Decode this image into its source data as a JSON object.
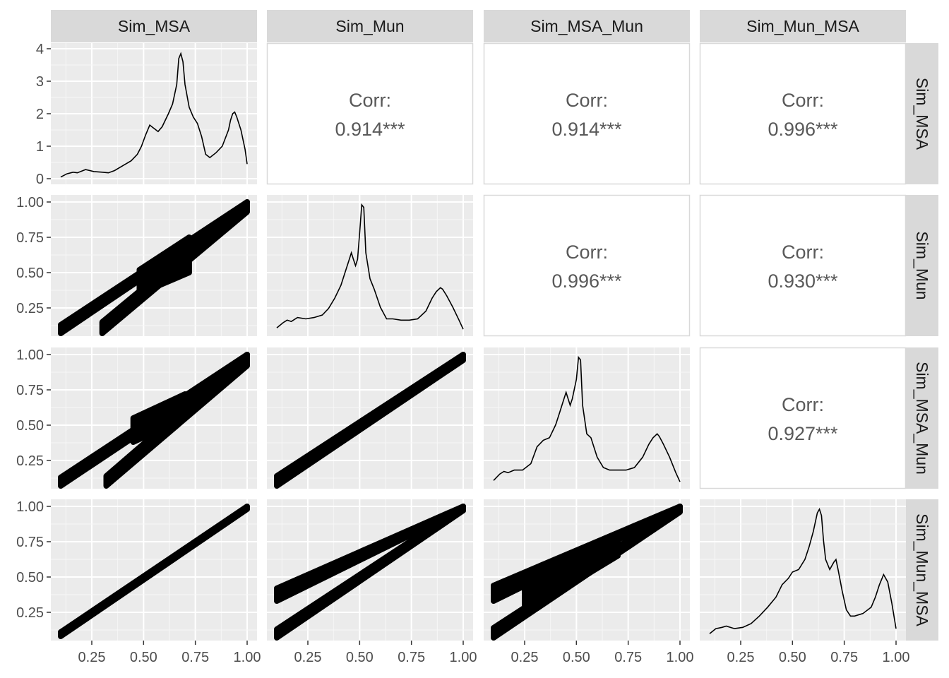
{
  "variables": [
    "Sim_MSA",
    "Sim_Mun",
    "Sim_MSA_Mun",
    "Sim_Mun_MSA"
  ],
  "chart_data": {
    "type": "scatter-matrix",
    "xlim": [
      0.1,
      1.0
    ],
    "ylim": [
      0.1,
      1.0
    ],
    "x_ticks": [
      "0.25",
      "0.50",
      "0.75",
      "1.00"
    ],
    "x_tick_values": [
      0.25,
      0.5,
      0.75,
      1.0
    ],
    "y_ticks": [
      "0.25",
      "0.50",
      "0.75",
      "1.00"
    ],
    "y_tick_values": [
      0.25,
      0.5,
      0.75,
      1.0
    ],
    "density_ticks": [
      "0",
      "1",
      "2",
      "3",
      "4"
    ],
    "density_tick_values": [
      0,
      1,
      2,
      3,
      4
    ],
    "density_ylim": [
      0,
      4
    ],
    "corr_label": "Corr:",
    "correlations": [
      {
        "row": 0,
        "col": 1,
        "value": "0.914***"
      },
      {
        "row": 0,
        "col": 2,
        "value": "0.914***"
      },
      {
        "row": 0,
        "col": 3,
        "value": "0.996***"
      },
      {
        "row": 1,
        "col": 2,
        "value": "0.996***"
      },
      {
        "row": 1,
        "col": 3,
        "value": "0.930***"
      },
      {
        "row": 2,
        "col": 3,
        "value": "0.927***"
      }
    ],
    "densities": [
      {
        "name": "Sim_MSA",
        "x": [
          0.1,
          0.13,
          0.16,
          0.18,
          0.22,
          0.26,
          0.3,
          0.33,
          0.36,
          0.4,
          0.44,
          0.47,
          0.49,
          0.51,
          0.53,
          0.55,
          0.57,
          0.59,
          0.62,
          0.64,
          0.66,
          0.67,
          0.68,
          0.69,
          0.7,
          0.72,
          0.74,
          0.76,
          0.78,
          0.8,
          0.82,
          0.85,
          0.88,
          0.91,
          0.92,
          0.93,
          0.94,
          0.95,
          0.97,
          0.99,
          1.0
        ],
        "y": [
          0.05,
          0.15,
          0.2,
          0.18,
          0.28,
          0.22,
          0.2,
          0.18,
          0.25,
          0.4,
          0.55,
          0.75,
          1.0,
          1.35,
          1.65,
          1.55,
          1.45,
          1.6,
          2.0,
          2.3,
          2.9,
          3.7,
          3.85,
          3.6,
          2.9,
          2.2,
          1.9,
          1.7,
          1.3,
          0.75,
          0.65,
          0.8,
          1.0,
          1.5,
          1.8,
          2.0,
          2.05,
          1.9,
          1.5,
          0.9,
          0.45
        ]
      },
      {
        "name": "Sim_Mun",
        "x": [
          0.1,
          0.13,
          0.15,
          0.17,
          0.2,
          0.24,
          0.28,
          0.32,
          0.35,
          0.38,
          0.41,
          0.43,
          0.45,
          0.46,
          0.47,
          0.48,
          0.49,
          0.5,
          0.51,
          0.52,
          0.53,
          0.55,
          0.57,
          0.6,
          0.63,
          0.66,
          0.7,
          0.74,
          0.78,
          0.82,
          0.85,
          0.87,
          0.89,
          0.9,
          0.92,
          0.95,
          0.98,
          1.0
        ],
        "y": [
          0.02,
          0.06,
          0.08,
          0.07,
          0.1,
          0.09,
          0.1,
          0.12,
          0.17,
          0.25,
          0.35,
          0.45,
          0.55,
          0.6,
          0.55,
          0.5,
          0.55,
          0.75,
          0.97,
          0.95,
          0.6,
          0.4,
          0.32,
          0.18,
          0.09,
          0.09,
          0.08,
          0.08,
          0.09,
          0.15,
          0.25,
          0.3,
          0.33,
          0.32,
          0.27,
          0.18,
          0.08,
          0.01
        ]
      },
      {
        "name": "Sim_MSA_Mun",
        "x": [
          0.1,
          0.13,
          0.15,
          0.17,
          0.2,
          0.24,
          0.28,
          0.31,
          0.34,
          0.37,
          0.4,
          0.42,
          0.44,
          0.45,
          0.46,
          0.47,
          0.48,
          0.5,
          0.51,
          0.52,
          0.53,
          0.55,
          0.57,
          0.6,
          0.63,
          0.66,
          0.7,
          0.74,
          0.78,
          0.82,
          0.85,
          0.87,
          0.89,
          0.9,
          0.92,
          0.95,
          0.98,
          1.0
        ],
        "y": [
          0.02,
          0.07,
          0.09,
          0.08,
          0.1,
          0.1,
          0.15,
          0.28,
          0.33,
          0.35,
          0.45,
          0.55,
          0.65,
          0.7,
          0.65,
          0.6,
          0.65,
          0.8,
          0.97,
          0.95,
          0.6,
          0.38,
          0.35,
          0.2,
          0.12,
          0.1,
          0.1,
          0.1,
          0.12,
          0.2,
          0.3,
          0.35,
          0.38,
          0.36,
          0.3,
          0.2,
          0.08,
          0.01
        ]
      },
      {
        "name": "Sim_Mun_MSA",
        "x": [
          0.1,
          0.13,
          0.16,
          0.18,
          0.22,
          0.26,
          0.3,
          0.34,
          0.38,
          0.42,
          0.45,
          0.48,
          0.5,
          0.53,
          0.56,
          0.58,
          0.6,
          0.62,
          0.63,
          0.64,
          0.65,
          0.66,
          0.68,
          0.7,
          0.71,
          0.72,
          0.74,
          0.76,
          0.78,
          0.8,
          0.84,
          0.88,
          0.9,
          0.92,
          0.94,
          0.96,
          0.98,
          1.0
        ],
        "y": [
          0.01,
          0.05,
          0.06,
          0.07,
          0.05,
          0.06,
          0.09,
          0.15,
          0.22,
          0.3,
          0.4,
          0.45,
          0.5,
          0.52,
          0.6,
          0.7,
          0.82,
          0.97,
          1.0,
          0.95,
          0.75,
          0.6,
          0.52,
          0.58,
          0.6,
          0.52,
          0.35,
          0.2,
          0.15,
          0.15,
          0.17,
          0.22,
          0.3,
          0.4,
          0.48,
          0.42,
          0.25,
          0.05
        ]
      }
    ],
    "scatter_bands": [
      {
        "row": 1,
        "col": 0,
        "bands": [
          {
            "x0": 0.1,
            "x1": 1.0,
            "lo0": 0.07,
            "lo1": 0.96,
            "hi0": 0.13,
            "hi1": 1.0
          },
          {
            "x0": 0.3,
            "x1": 1.0,
            "lo0": 0.07,
            "lo1": 0.93,
            "hi0": 0.15,
            "hi1": 1.0
          },
          {
            "x0": 0.48,
            "x1": 0.72,
            "lo0": 0.35,
            "lo1": 0.5,
            "hi0": 0.52,
            "hi1": 0.75
          }
        ]
      },
      {
        "row": 2,
        "col": 0,
        "bands": [
          {
            "x0": 0.1,
            "x1": 1.0,
            "lo0": 0.07,
            "lo1": 0.95,
            "hi0": 0.13,
            "hi1": 1.0
          },
          {
            "x0": 0.32,
            "x1": 1.0,
            "lo0": 0.07,
            "lo1": 0.92,
            "hi0": 0.14,
            "hi1": 1.0
          },
          {
            "x0": 0.45,
            "x1": 0.7,
            "lo0": 0.38,
            "lo1": 0.55,
            "hi0": 0.55,
            "hi1": 0.72
          }
        ]
      },
      {
        "row": 2,
        "col": 1,
        "bands": [
          {
            "x0": 0.1,
            "x1": 1.0,
            "lo0": 0.07,
            "lo1": 0.96,
            "hi0": 0.14,
            "hi1": 1.0
          }
        ]
      },
      {
        "row": 3,
        "col": 0,
        "bands": [
          {
            "x0": 0.1,
            "x1": 1.0,
            "lo0": 0.08,
            "lo1": 0.98,
            "hi0": 0.11,
            "hi1": 1.0
          }
        ]
      },
      {
        "row": 3,
        "col": 1,
        "bands": [
          {
            "x0": 0.1,
            "x1": 1.0,
            "lo0": 0.07,
            "lo1": 0.97,
            "hi0": 0.13,
            "hi1": 1.0
          },
          {
            "x0": 0.1,
            "x1": 1.0,
            "lo0": 0.33,
            "lo1": 0.98,
            "hi0": 0.42,
            "hi1": 1.0
          }
        ]
      },
      {
        "row": 3,
        "col": 2,
        "bands": [
          {
            "x0": 0.1,
            "x1": 1.0,
            "lo0": 0.07,
            "lo1": 0.96,
            "hi0": 0.14,
            "hi1": 1.0
          },
          {
            "x0": 0.1,
            "x1": 1.0,
            "lo0": 0.33,
            "lo1": 0.98,
            "hi0": 0.44,
            "hi1": 1.0
          },
          {
            "x0": 0.25,
            "x1": 0.7,
            "lo0": 0.25,
            "lo1": 0.65,
            "hi0": 0.45,
            "hi1": 0.78
          }
        ]
      }
    ],
    "grid": true
  }
}
